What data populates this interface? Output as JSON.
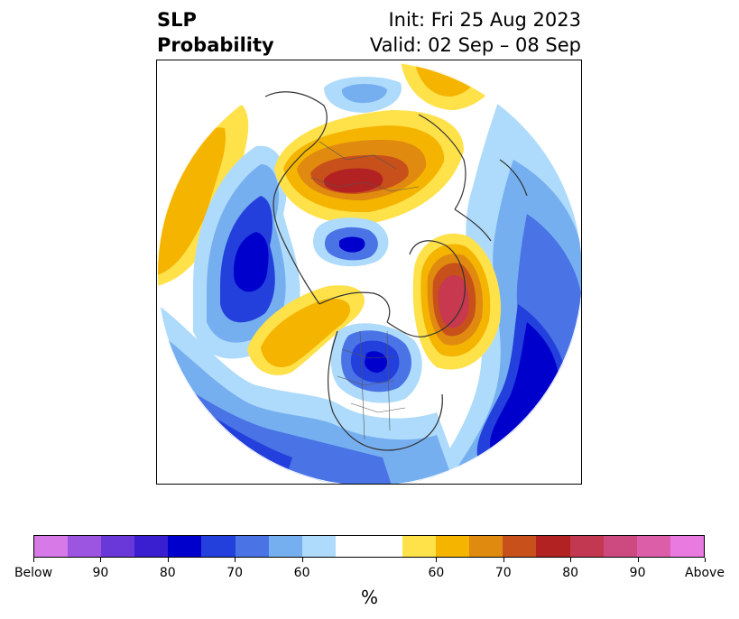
{
  "title": {
    "left_line1": "SLP",
    "left_line2": "Probability",
    "right_line1": "Init: Fri 25 Aug 2023",
    "right_line2": "Valid: 02 Sep – 08 Sep"
  },
  "map": {
    "projection": "north-polar-stereographic",
    "features": "sea-level-pressure probability anomaly with coastlines and political borders",
    "colors": {
      "below_90": "#5e2ed6",
      "below_80": "#0000cc",
      "below_70": "#2340dd",
      "below_60": "#4a73e6",
      "below_50": "#76aff0",
      "light_blue": "#aedbfb",
      "above_50": "#ffe14a",
      "above_60": "#f4b400",
      "above_70": "#e08a10",
      "above_80": "#c8501a",
      "above_90": "#b22222",
      "above_max": "#c8384e",
      "coast": "#333333"
    }
  },
  "colorbar": {
    "colors": [
      "#d77ae8",
      "#9b55e0",
      "#6a38d8",
      "#3a1fd0",
      "#0000cc",
      "#2340dd",
      "#4a73e6",
      "#76aff0",
      "#aedbfb",
      "#ffffff",
      "#ffffff",
      "#ffe14a",
      "#f4b400",
      "#e08a10",
      "#c8501a",
      "#b22222",
      "#c23850",
      "#cc4a80",
      "#dd5ea8",
      "#e87ae0"
    ],
    "labels": [
      "Below",
      "90",
      "80",
      "70",
      "60",
      "60",
      "70",
      "80",
      "90",
      "Above"
    ],
    "unit": "%"
  }
}
